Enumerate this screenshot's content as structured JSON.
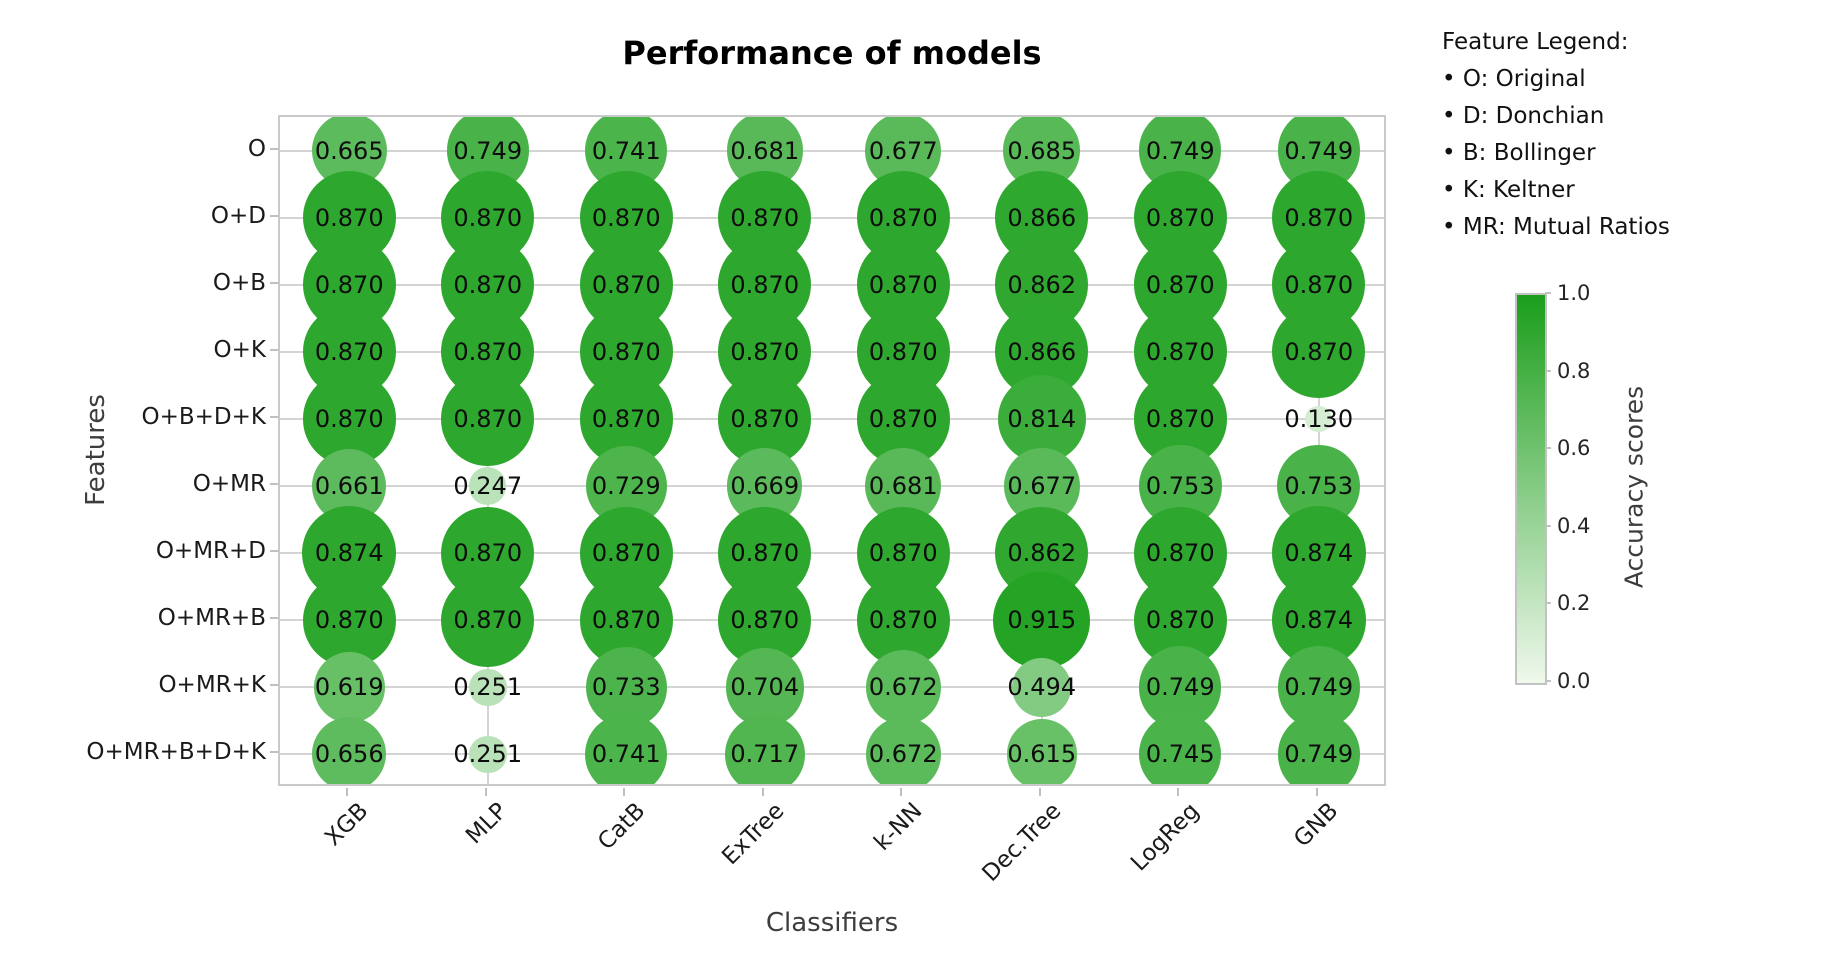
{
  "chart": {
    "title": "Performance of models",
    "xlabel": "Classifiers",
    "ylabel": "Features"
  },
  "chart_data": {
    "type": "scatter",
    "subtype": "bubble-matrix",
    "x_categories": [
      "XGB",
      "MLP",
      "CatB",
      "ExTree",
      "k-NN",
      "Dec.Tree",
      "LogReg",
      "GNB"
    ],
    "y_categories": [
      "O",
      "O+D",
      "O+B",
      "O+K",
      "O+B+D+K",
      "O+MR",
      "O+MR+D",
      "O+MR+B",
      "O+MR+K",
      "O+MR+B+D+K"
    ],
    "values": [
      [
        0.665,
        0.749,
        0.741,
        0.681,
        0.677,
        0.685,
        0.749,
        0.749
      ],
      [
        0.87,
        0.87,
        0.87,
        0.87,
        0.87,
        0.866,
        0.87,
        0.87
      ],
      [
        0.87,
        0.87,
        0.87,
        0.87,
        0.87,
        0.862,
        0.87,
        0.87
      ],
      [
        0.87,
        0.87,
        0.87,
        0.87,
        0.87,
        0.866,
        0.87,
        0.87
      ],
      [
        0.87,
        0.87,
        0.87,
        0.87,
        0.87,
        0.814,
        0.87,
        0.13
      ],
      [
        0.661,
        0.247,
        0.729,
        0.669,
        0.681,
        0.677,
        0.753,
        0.753
      ],
      [
        0.874,
        0.87,
        0.87,
        0.87,
        0.87,
        0.862,
        0.87,
        0.874
      ],
      [
        0.87,
        0.87,
        0.87,
        0.87,
        0.87,
        0.915,
        0.87,
        0.874
      ],
      [
        0.619,
        0.251,
        0.733,
        0.704,
        0.672,
        0.494,
        0.749,
        0.749
      ],
      [
        0.656,
        0.251,
        0.741,
        0.717,
        0.672,
        0.615,
        0.745,
        0.749
      ]
    ],
    "value_format": "3-decimals",
    "title": "Performance of models",
    "xlabel": "Classifiers",
    "ylabel": "Features",
    "grid": "on",
    "size_encoding": "bubble radius proportional to accuracy value",
    "color_encoding": "bubble fill from light green (0.0) to dark green (1.0)",
    "colormap": {
      "low": "#f2faf0",
      "high": "#119b11"
    }
  },
  "legend": {
    "title": "Feature Legend:",
    "items": [
      "• O: Original",
      "• D: Donchian",
      "• B: Bollinger",
      "• K: Keltner",
      "• MR: Mutual Ratios"
    ]
  },
  "colorbar": {
    "label": "Accuracy scores",
    "min": 0.0,
    "max": 1.0,
    "ticks": [
      "1.0",
      "0.8",
      "0.6",
      "0.4",
      "0.2",
      "0.0"
    ]
  }
}
